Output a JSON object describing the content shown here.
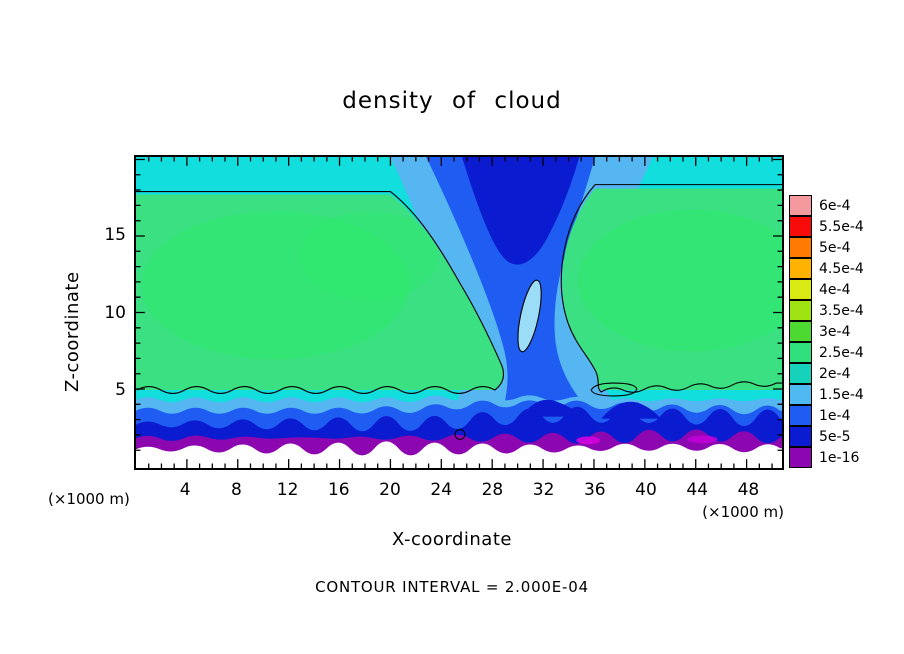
{
  "title": "density of cloud",
  "axes": {
    "x_label": "X-coordinate",
    "z_label": "Z-coordinate",
    "x_unit_left": "(×1000 m)",
    "x_unit_right": "(×1000 m)"
  },
  "footnote": "CONTOUR INTERVAL = 2.000E-04",
  "chart_data": {
    "type": "heatmap",
    "title": "density of cloud",
    "xlabel": "X-coordinate",
    "ylabel": "Z-coordinate",
    "x_unit": "×1000 m",
    "z_unit": "×1000 m",
    "xlim": [
      0,
      50.78
    ],
    "zlim": [
      -0.16,
      20.16
    ],
    "x_major_ticks": [
      4,
      8,
      12,
      16,
      20,
      24,
      28,
      32,
      36,
      40,
      44,
      48
    ],
    "x_minor_tick_step": 1,
    "z_major_ticks": [
      5,
      10,
      15
    ],
    "z_minor_tick_step": 1,
    "contour_interval": 0.0002,
    "colorbar": {
      "levels": [
        {
          "label": "6e-4",
          "color": "#f49a9e"
        },
        {
          "label": "5.5e-4",
          "color": "#f80b0b"
        },
        {
          "label": "5e-4",
          "color": "#ff7a00"
        },
        {
          "label": "4.5e-4",
          "color": "#ffb300"
        },
        {
          "label": "4e-4",
          "color": "#d8ea12"
        },
        {
          "label": "3.5e-4",
          "color": "#9fe312"
        },
        {
          "label": "3e-4",
          "color": "#4ed932"
        },
        {
          "label": "2.5e-4",
          "color": "#2fe07c"
        },
        {
          "label": "2e-4",
          "color": "#17d2bb"
        },
        {
          "label": "1.5e-4",
          "color": "#4fb9f2"
        },
        {
          "label": "1e-4",
          "color": "#1f5df2"
        },
        {
          "label": "5e-5",
          "color": "#0b1bd0"
        },
        {
          "label": "1e-16",
          "color": "#8d07b0"
        }
      ]
    },
    "features": [
      "two broad green cloud lobes (~2.5e-4 to 3e-4) centered near z=10, separated by a low-density blue slot descending from the top between x≈24 and x≈34",
      "thin cyan cap layer (~2e-4) near z≈18 across the full width",
      "strong vertical gradient near z≈3 through blue (~1e-4) and dark blue (~5e-5) to a wavy purple band (~1e-16) at z≈2.5",
      "cloud-free white region below z≈2",
      "black contour lines drawn at the 2e-4 level, including a small closed ellipse inside the central slot and a small closed loop near x≈38, z≈5"
    ]
  }
}
